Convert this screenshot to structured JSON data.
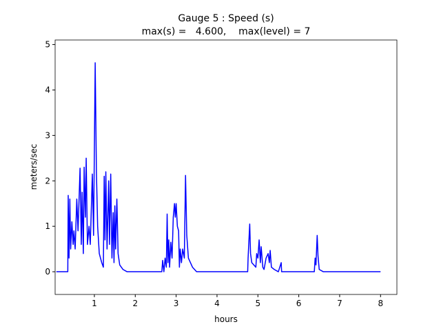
{
  "chart_data": {
    "type": "line",
    "title": "Gauge 5 : Speed (s)",
    "subtitle": "max(s) =   4.600,    max(level) = 7",
    "x_label": "hours",
    "y_label": "meters/sec",
    "xlim": [
      0.04,
      8.4
    ],
    "ylim": [
      -0.5,
      5.1
    ],
    "xticks": [
      1,
      2,
      3,
      4,
      5,
      6,
      7,
      8
    ],
    "yticks": [
      0,
      1,
      2,
      3,
      4,
      5
    ],
    "series": [
      {
        "name": "speed",
        "color": "#0000ff",
        "x": [
          0.07,
          0.35,
          0.36,
          0.38,
          0.4,
          0.42,
          0.45,
          0.48,
          0.5,
          0.53,
          0.57,
          0.6,
          0.65,
          0.68,
          0.7,
          0.73,
          0.75,
          0.78,
          0.8,
          0.83,
          0.87,
          0.9,
          0.95,
          0.98,
          1.02,
          1.05,
          1.08,
          1.12,
          1.18,
          1.22,
          1.24,
          1.26,
          1.28,
          1.31,
          1.35,
          1.37,
          1.4,
          1.43,
          1.46,
          1.48,
          1.5,
          1.52,
          1.55,
          1.58,
          1.62,
          1.7,
          1.8,
          2.65,
          2.67,
          2.7,
          2.73,
          2.76,
          2.78,
          2.8,
          2.82,
          2.84,
          2.87,
          2.9,
          2.93,
          2.96,
          2.98,
          3.0,
          3.03,
          3.06,
          3.08,
          3.1,
          3.13,
          3.16,
          3.2,
          3.23,
          3.26,
          3.3,
          3.4,
          3.5,
          4.75,
          4.76,
          4.8,
          4.82,
          4.85,
          4.95,
          4.97,
          5.0,
          5.03,
          5.06,
          5.08,
          5.12,
          5.15,
          5.2,
          5.25,
          5.28,
          5.3,
          5.33,
          5.4,
          5.5,
          5.57,
          5.58,
          6.38,
          6.4,
          6.42,
          6.45,
          6.47,
          6.5,
          6.6,
          8.0
        ],
        "values": [
          0,
          0,
          1.68,
          0.3,
          1.6,
          0.5,
          1.1,
          0.6,
          0.9,
          0.5,
          1.6,
          0.9,
          2.28,
          0.6,
          1.75,
          0.4,
          2.3,
          1.2,
          2.5,
          0.6,
          1.0,
          0.6,
          2.15,
          0.8,
          4.6,
          2.2,
          1.0,
          0.4,
          0.2,
          0.1,
          2.1,
          0.7,
          2.2,
          0.5,
          2.0,
          0.6,
          2.15,
          0.3,
          1.3,
          0.2,
          1.45,
          0.5,
          1.6,
          0.4,
          0.15,
          0.05,
          0,
          0,
          0.25,
          0,
          0.3,
          0.1,
          1.27,
          0.2,
          0.7,
          0.1,
          0.65,
          0.3,
          1.2,
          1.5,
          1.2,
          1.5,
          1.0,
          0.9,
          0.1,
          0.5,
          0.2,
          0.5,
          0.3,
          2.12,
          0.8,
          0.3,
          0.1,
          0,
          0,
          0.3,
          1.05,
          0.4,
          0.2,
          0.1,
          0.4,
          0.3,
          0.7,
          0.2,
          0.55,
          0.1,
          0.05,
          0.3,
          0.4,
          0.2,
          0.47,
          0.1,
          0.05,
          0,
          0.2,
          0,
          0,
          0.3,
          0.15,
          0.8,
          0.35,
          0.05,
          0,
          0
        ]
      }
    ]
  }
}
